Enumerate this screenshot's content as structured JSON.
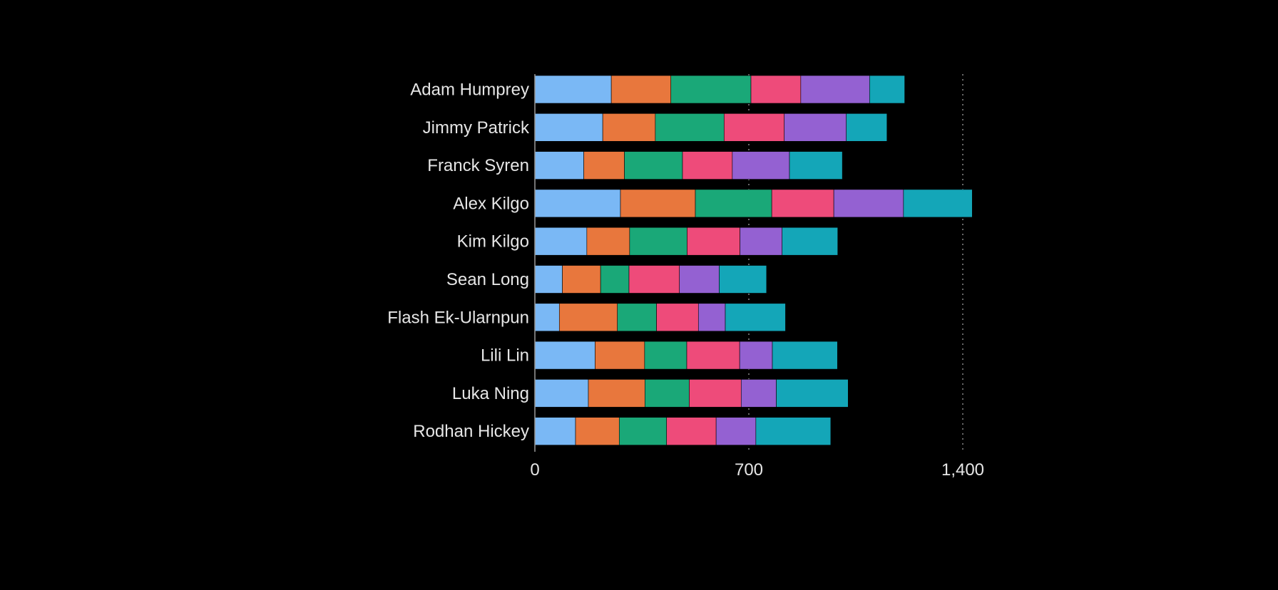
{
  "chart_data": {
    "type": "bar",
    "orientation": "horizontal",
    "stacked": true,
    "categories": [
      "Adam Humprey",
      "Jimmy Patrick",
      "Franck Syren",
      "Alex Kilgo",
      "Kim Kilgo",
      "Sean Long",
      "Flash Ek-Ularnpun",
      "Lili Lin",
      "Luka Ning",
      "Rodhan Hickey"
    ],
    "series": [
      {
        "color": "#7ab8f5",
        "values": [
          250,
          222,
          160,
          280,
          170,
          90,
          80,
          197,
          175,
          133
        ]
      },
      {
        "color": "#e8773d",
        "values": [
          195,
          172,
          133,
          245,
          140,
          125,
          190,
          162,
          185,
          143
        ]
      },
      {
        "color": "#1aa878",
        "values": [
          262,
          225,
          190,
          250,
          188,
          93,
          128,
          138,
          145,
          155
        ]
      },
      {
        "color": "#ee4b7a",
        "values": [
          163,
          197,
          163,
          203,
          173,
          165,
          137,
          173,
          170,
          162
        ]
      },
      {
        "color": "#9461d2",
        "values": [
          225,
          203,
          187,
          228,
          138,
          130,
          88,
          107,
          115,
          130
        ]
      },
      {
        "color": "#14a6b8",
        "values": [
          115,
          133,
          173,
          225,
          182,
          155,
          197,
          213,
          235,
          245
        ]
      }
    ],
    "x_ticks": [
      0,
      700,
      1400
    ],
    "x_tick_labels": [
      "0",
      "700",
      "1,400"
    ],
    "xlim": [
      0,
      1400
    ],
    "grid": "vertical dotted",
    "legend": "none"
  }
}
